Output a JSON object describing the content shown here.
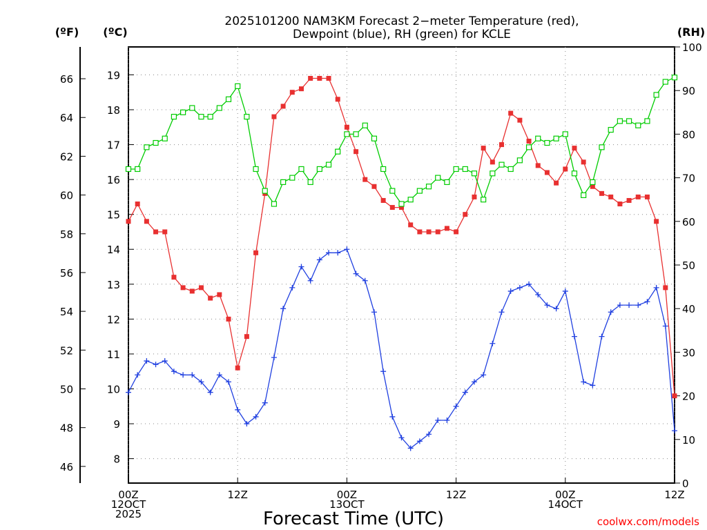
{
  "chart_data": {
    "type": "line",
    "title": "2025101200 NAM3KM Forecast 2-meter Temperature (red), Dewpoint (blue), RH (green) for KCLE",
    "title_lines": [
      "2025101200 NAM3KM Forecast 2−meter Temperature (red),",
      "Dewpoint (blue), RH (green) for KCLE"
    ],
    "xlabel": "Forecast Time (UTC)",
    "credit": "coolwx.com/models",
    "x_unit": "forecast hour",
    "x_range": [
      0,
      60
    ],
    "x_ticks": [
      {
        "hour": 0,
        "lines": [
          "00Z",
          "12OCT",
          "2025"
        ]
      },
      {
        "hour": 12,
        "lines": [
          "12Z"
        ]
      },
      {
        "hour": 24,
        "lines": [
          "00Z",
          "13OCT"
        ]
      },
      {
        "hour": 36,
        "lines": [
          "12Z"
        ]
      },
      {
        "hour": 48,
        "lines": [
          "00Z",
          "14OCT"
        ]
      },
      {
        "hour": 60,
        "lines": [
          "12Z"
        ]
      }
    ],
    "axes": {
      "celsius": {
        "label": "(ºC)",
        "range": [
          7.3,
          19.8
        ],
        "ticks": [
          8,
          9,
          10,
          11,
          12,
          13,
          14,
          15,
          16,
          17,
          18,
          19
        ]
      },
      "fahrenheit": {
        "label": "(ºF)",
        "ticks": [
          46,
          48,
          50,
          52,
          54,
          56,
          58,
          60,
          62,
          64,
          66
        ]
      },
      "rh": {
        "label": "(RH)",
        "range": [
          0,
          100
        ],
        "ticks": [
          0,
          10,
          20,
          30,
          40,
          50,
          60,
          70,
          80,
          90,
          100
        ]
      }
    },
    "series": [
      {
        "name": "Temperature",
        "unit": "°C",
        "color": "#e83030",
        "marker": "filled-square",
        "values": [
          14.8,
          15.3,
          14.8,
          14.5,
          14.5,
          13.2,
          12.9,
          12.8,
          12.9,
          12.6,
          12.7,
          12.0,
          10.6,
          11.5,
          13.9,
          15.6,
          17.8,
          18.1,
          18.5,
          18.6,
          18.9,
          18.9,
          18.9,
          18.3,
          17.5,
          16.8,
          16.0,
          15.8,
          15.4,
          15.2,
          15.2,
          14.7,
          14.5,
          14.5,
          14.5,
          14.6,
          14.5,
          15.0,
          15.5,
          16.9,
          16.5,
          17.0,
          17.9,
          17.7,
          17.1,
          16.4,
          16.2,
          15.9,
          16.3,
          16.9,
          16.5,
          15.8,
          15.6,
          15.5,
          15.3,
          15.4,
          15.5,
          15.5,
          14.8,
          12.9,
          9.8
        ]
      },
      {
        "name": "Dewpoint",
        "unit": "°C",
        "color": "#1f3fe0",
        "marker": "plus",
        "values": [
          9.9,
          10.4,
          10.8,
          10.7,
          10.8,
          10.5,
          10.4,
          10.4,
          10.2,
          9.9,
          10.4,
          10.2,
          9.4,
          9.0,
          9.2,
          9.6,
          10.9,
          12.3,
          12.9,
          13.5,
          13.1,
          13.7,
          13.9,
          13.9,
          14.0,
          13.3,
          13.1,
          12.2,
          10.5,
          9.2,
          8.6,
          8.3,
          8.5,
          8.7,
          9.1,
          9.1,
          9.5,
          9.9,
          10.2,
          10.4,
          11.3,
          12.2,
          12.8,
          12.9,
          13.0,
          12.7,
          12.4,
          12.3,
          12.8,
          11.5,
          10.2,
          10.1,
          11.5,
          12.2,
          12.4,
          12.4,
          12.4,
          12.5,
          12.9,
          11.8,
          8.8
        ]
      },
      {
        "name": "RH",
        "unit": "%",
        "color": "#00cc00",
        "marker": "open-square",
        "values": [
          72,
          72,
          77,
          78,
          79,
          84,
          85,
          86,
          84,
          84,
          86,
          88,
          91,
          84,
          72,
          67,
          64,
          69,
          70,
          72,
          69,
          72,
          73,
          76,
          80,
          80,
          82,
          79,
          72,
          67,
          64,
          65,
          67,
          68,
          70,
          69,
          72,
          72,
          71,
          65,
          71,
          73,
          72,
          74,
          77,
          79,
          78,
          79,
          80,
          71,
          66,
          69,
          77,
          81,
          83,
          83,
          82,
          83,
          89,
          92,
          93
        ]
      }
    ]
  }
}
